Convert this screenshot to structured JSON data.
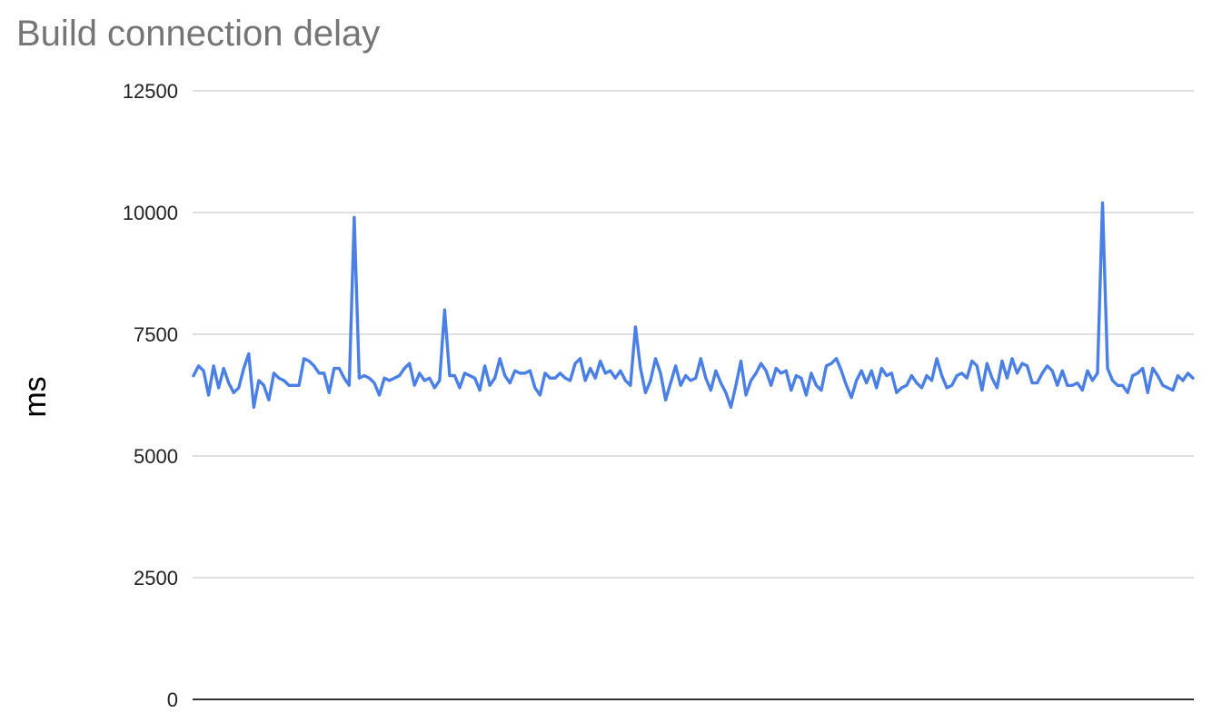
{
  "chart_data": {
    "type": "line",
    "title": "Build connection delay",
    "xlabel": "",
    "ylabel": "ms",
    "ylim": [
      0,
      12500
    ],
    "yticks": [
      0,
      2500,
      5000,
      7500,
      10000,
      12500
    ],
    "ytick_labels": [
      "0",
      "2500",
      "5000",
      "7500",
      "10000",
      "12500"
    ],
    "grid": true,
    "legend": "none",
    "x_tick_labels": false,
    "series_color": "#4a80e6",
    "gridline_color": "#cccccc",
    "series": [
      {
        "values": [
          6650,
          6850,
          6750,
          6250,
          6850,
          6400,
          6800,
          6500,
          6300,
          6400,
          6800,
          7100,
          6000,
          6550,
          6450,
          6150,
          6700,
          6600,
          6550,
          6450,
          6450,
          6450,
          7000,
          6950,
          6850,
          6700,
          6700,
          6300,
          6800,
          6800,
          6600,
          6450,
          9900,
          6600,
          6650,
          6600,
          6500,
          6250,
          6600,
          6550,
          6600,
          6650,
          6800,
          6900,
          6450,
          6700,
          6550,
          6600,
          6400,
          6550,
          8000,
          6650,
          6650,
          6400,
          6700,
          6650,
          6600,
          6350,
          6850,
          6450,
          6600,
          7000,
          6650,
          6500,
          6750,
          6700,
          6700,
          6750,
          6400,
          6250,
          6700,
          6600,
          6600,
          6700,
          6600,
          6550,
          6900,
          7000,
          6550,
          6800,
          6600,
          6950,
          6700,
          6750,
          6600,
          6750,
          6550,
          6450,
          7650,
          6800,
          6300,
          6550,
          7000,
          6700,
          6150,
          6500,
          6850,
          6450,
          6650,
          6550,
          6600,
          7000,
          6600,
          6350,
          6750,
          6500,
          6300,
          6000,
          6450,
          6950,
          6250,
          6550,
          6700,
          6900,
          6750,
          6450,
          6800,
          6700,
          6750,
          6350,
          6650,
          6600,
          6250,
          6700,
          6450,
          6350,
          6850,
          6900,
          7000,
          6750,
          6450,
          6200,
          6550,
          6750,
          6500,
          6750,
          6400,
          6800,
          6650,
          6700,
          6300,
          6400,
          6450,
          6650,
          6500,
          6400,
          6650,
          6550,
          7000,
          6650,
          6400,
          6450,
          6650,
          6700,
          6600,
          6950,
          6850,
          6350,
          6900,
          6600,
          6400,
          6950,
          6600,
          7000,
          6700,
          6900,
          6850,
          6500,
          6500,
          6700,
          6850,
          6750,
          6450,
          6750,
          6450,
          6450,
          6500,
          6350,
          6750,
          6550,
          6700,
          10200,
          6800,
          6550,
          6450,
          6450,
          6300,
          6650,
          6700,
          6800,
          6300,
          6800,
          6650,
          6450,
          6400,
          6350,
          6650,
          6550,
          6700,
          6600
        ]
      }
    ]
  }
}
